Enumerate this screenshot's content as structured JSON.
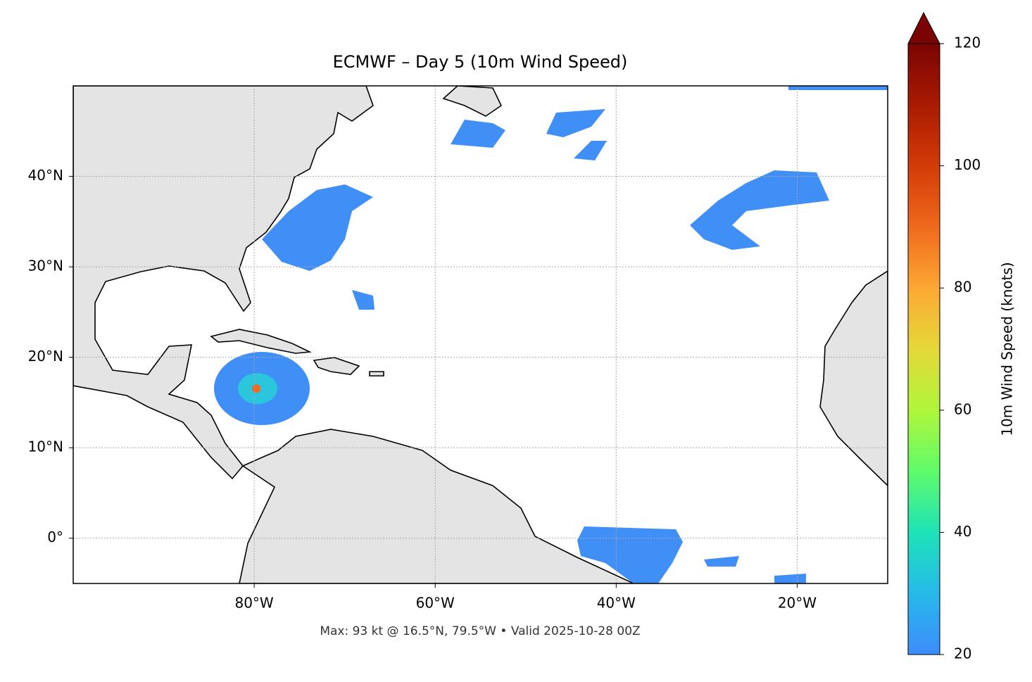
{
  "chart_data": {
    "type": "map",
    "title": "ECMWF – Day 5 (10m Wind Speed)",
    "footnote": "Max: 93 kt @ 16.5°N, 79.5°W • Valid 2025-10-28 00Z",
    "xlim": [
      -100,
      -10
    ],
    "ylim": [
      -5,
      50
    ],
    "xticks": [
      {
        "value": -80,
        "label": "80°W"
      },
      {
        "value": -60,
        "label": "60°W"
      },
      {
        "value": -40,
        "label": "40°W"
      },
      {
        "value": -20,
        "label": "20°W"
      }
    ],
    "yticks": [
      {
        "value": 0,
        "label": "0°"
      },
      {
        "value": 10,
        "label": "10°N"
      },
      {
        "value": 20,
        "label": "20°N"
      },
      {
        "value": 30,
        "label": "30°N"
      },
      {
        "value": 40,
        "label": "40°N"
      }
    ],
    "grid": true,
    "colorbar": {
      "label": "10m Wind Speed (knots)",
      "lim": [
        20,
        120
      ],
      "ticks": [
        20,
        40,
        60,
        80,
        100,
        120
      ]
    }
  }
}
